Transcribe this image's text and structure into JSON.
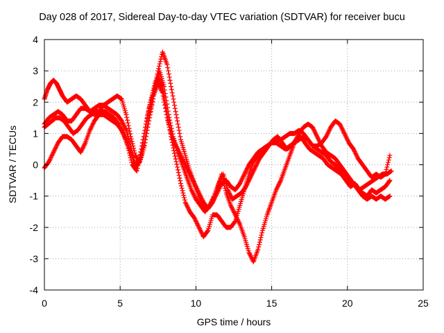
{
  "chart_data": {
    "type": "scatter",
    "title": "Day 028 of 2017, Sidereal Day-to-day VTEC variation (SDTVAR) for receiver bucu",
    "xlabel": "GPS time / hours",
    "ylabel": "SDTVAR / TECUs",
    "xlim": [
      0,
      25
    ],
    "ylim": [
      -4,
      4
    ],
    "xticks": [
      "0",
      "5",
      "10",
      "15",
      "20",
      "25"
    ],
    "yticks": [
      "-4",
      "-3",
      "-2",
      "-1",
      "0",
      "1",
      "2",
      "3",
      "4"
    ],
    "grid": true,
    "marker": "+",
    "color": "#ff0000",
    "series": [
      {
        "x": [
          0.0,
          0.2,
          0.4,
          0.6,
          0.8,
          1.0,
          1.2,
          1.5,
          1.8,
          2.1,
          2.4,
          2.7,
          3.0,
          3.3,
          3.6,
          3.9,
          4.2,
          4.5,
          4.8,
          5.1,
          5.4,
          5.7,
          6.0,
          6.3,
          6.6,
          6.9,
          7.2,
          7.5,
          7.8,
          8.1,
          8.4,
          8.7,
          9.0,
          9.3,
          9.6,
          9.9,
          10.2,
          10.5,
          10.8,
          11.1,
          11.4,
          11.7,
          12.0,
          12.3,
          12.6,
          12.9,
          13.2,
          13.5,
          13.8,
          14.1,
          14.4,
          14.7,
          15.0,
          15.3,
          15.6,
          15.9,
          16.2,
          16.5,
          16.8,
          17.1,
          17.4,
          17.7,
          18.0,
          18.3,
          18.6,
          18.9,
          19.2,
          19.5,
          19.8,
          20.1,
          20.4,
          20.7,
          21.0,
          21.3,
          21.6,
          21.9,
          22.2,
          22.5,
          22.8
        ],
        "y": [
          2.1,
          2.4,
          2.6,
          2.7,
          2.6,
          2.4,
          2.2,
          2.0,
          2.1,
          2.2,
          2.1,
          1.9,
          1.7,
          1.8,
          1.9,
          1.9,
          1.8,
          1.7,
          1.6,
          1.4,
          1.1,
          0.6,
          0.0,
          0.2,
          1.0,
          1.8,
          2.3,
          2.8,
          2.5,
          1.6,
          0.8,
          0.1,
          -0.6,
          -1.2,
          -1.5,
          -1.7,
          -2.0,
          -2.3,
          -2.1,
          -1.6,
          -1.6,
          -1.8,
          -2.0,
          -2.0,
          -1.8,
          -1.3,
          -0.8,
          -0.3,
          0.1,
          0.3,
          0.5,
          0.6,
          0.7,
          0.8,
          0.8,
          0.9,
          1.0,
          1.0,
          1.1,
          1.0,
          0.8,
          0.6,
          0.5,
          0.4,
          0.3,
          0.1,
          0.0,
          -0.2,
          -0.4,
          -0.5,
          -0.6,
          -0.8,
          -0.9,
          -1.0,
          -0.8,
          -0.9,
          -0.8,
          -0.7,
          -0.5
        ]
      },
      {
        "x": [
          0.0,
          0.3,
          0.6,
          0.9,
          1.2,
          1.5,
          1.8,
          2.1,
          2.4,
          2.7,
          3.0,
          3.3,
          3.6,
          3.9,
          4.2,
          4.5,
          4.8,
          5.1,
          5.4,
          5.7,
          6.0,
          6.3,
          6.6,
          6.9,
          7.2,
          7.5,
          7.8,
          8.1,
          8.4,
          8.7,
          9.0,
          9.3,
          9.6,
          9.9,
          10.2,
          10.5,
          10.8,
          11.1,
          11.4,
          11.7,
          12.0,
          12.3,
          12.6,
          12.9,
          13.2,
          13.5,
          13.8,
          14.1,
          14.4,
          14.7,
          15.0,
          15.3,
          15.6,
          15.9,
          16.2,
          16.5,
          16.8,
          17.1,
          17.4,
          17.7,
          18.0,
          18.3,
          18.6,
          18.9,
          19.2,
          19.5,
          19.8,
          20.1,
          20.4,
          20.7,
          21.0,
          21.3,
          21.6,
          21.9,
          22.2,
          22.5,
          22.8
        ],
        "y": [
          1.3,
          1.5,
          1.6,
          1.7,
          1.6,
          1.4,
          1.4,
          1.6,
          1.8,
          1.8,
          1.7,
          1.6,
          1.7,
          1.9,
          2.0,
          2.1,
          2.2,
          2.1,
          1.6,
          0.9,
          0.3,
          0.1,
          0.6,
          1.4,
          2.2,
          3.0,
          3.6,
          3.2,
          2.4,
          1.6,
          0.8,
          0.3,
          -0.2,
          -0.6,
          -1.0,
          -1.3,
          -1.4,
          -1.2,
          -0.8,
          -0.3,
          -0.9,
          -1.3,
          -1.6,
          -1.9,
          -2.3,
          -2.8,
          -3.1,
          -2.7,
          -2.1,
          -1.6,
          -1.2,
          -0.8,
          -0.5,
          -0.1,
          0.3,
          0.7,
          1.0,
          1.2,
          1.3,
          1.2,
          0.9,
          0.6,
          0.4,
          0.3,
          0.2,
          0.0,
          -0.2,
          -0.4,
          -0.6,
          -0.8,
          -1.0,
          -1.1,
          -1.0,
          -1.1,
          -1.0,
          -1.1,
          -1.0
        ]
      },
      {
        "x": [
          0.0,
          0.25,
          0.5,
          0.75,
          1.0,
          1.3,
          1.6,
          1.9,
          2.2,
          2.5,
          2.8,
          3.1,
          3.4,
          3.7,
          4.0,
          4.3,
          4.6,
          4.9,
          5.2,
          5.5,
          5.8,
          6.1,
          6.4,
          6.7,
          7.0,
          7.3,
          7.6,
          7.9,
          8.2,
          8.5,
          8.8,
          9.1,
          9.4,
          9.7,
          10.0,
          10.3,
          10.6,
          10.9,
          11.2,
          11.5,
          11.8,
          12.1,
          12.4,
          12.7,
          13.0,
          13.3,
          13.6,
          13.9,
          14.2,
          14.5,
          14.8,
          15.1,
          15.4,
          15.7,
          16.0,
          16.3,
          16.6,
          16.9,
          17.2,
          17.5,
          17.8,
          18.1,
          18.4,
          18.7,
          19.0,
          19.3,
          19.6,
          19.9,
          20.2,
          20.5,
          20.8,
          21.1,
          21.4,
          21.7,
          22.0,
          22.3,
          22.6,
          22.9
        ],
        "y": [
          1.2,
          1.3,
          1.4,
          1.5,
          1.5,
          1.4,
          1.2,
          1.0,
          1.1,
          1.3,
          1.5,
          1.6,
          1.7,
          1.7,
          1.7,
          1.6,
          1.5,
          1.3,
          1.0,
          0.6,
          0.0,
          -0.2,
          0.5,
          1.3,
          2.0,
          2.6,
          3.0,
          2.5,
          1.6,
          0.9,
          0.4,
          0.0,
          -0.4,
          -0.8,
          -1.1,
          -1.3,
          -1.5,
          -1.3,
          -1.0,
          -0.6,
          -0.3,
          -0.8,
          -1.1,
          -1.0,
          -0.9,
          -0.7,
          -0.4,
          -0.1,
          0.2,
          0.4,
          0.6,
          0.8,
          0.9,
          0.7,
          0.5,
          0.6,
          0.8,
          0.9,
          0.7,
          0.5,
          0.4,
          0.3,
          0.2,
          0.0,
          -0.1,
          -0.2,
          -0.3,
          -0.5,
          -0.7,
          -0.6,
          -0.8,
          -0.7,
          -0.6,
          -0.5,
          -0.4,
          -0.3,
          -0.3,
          -0.2
        ]
      },
      {
        "x": [
          0.0,
          0.3,
          0.6,
          0.9,
          1.2,
          1.5,
          1.8,
          2.1,
          2.4,
          2.7,
          3.0,
          3.3,
          3.6,
          3.9,
          4.2,
          4.5,
          4.8,
          5.1,
          5.4,
          5.7,
          6.0,
          6.3,
          6.6,
          6.9,
          7.2,
          7.5,
          7.8,
          8.1,
          8.4,
          8.7,
          9.0,
          9.3,
          9.6,
          9.9,
          10.2,
          10.5,
          10.8,
          11.1,
          11.4,
          11.7,
          12.0,
          12.3,
          12.6,
          12.9,
          13.2,
          13.5,
          13.8,
          14.1,
          14.4,
          14.7,
          15.0,
          15.3,
          15.6,
          15.9,
          16.2,
          16.5,
          16.8,
          17.1,
          17.4,
          17.7,
          18.0,
          18.3,
          18.6,
          18.9,
          19.2,
          19.5,
          19.8,
          20.1,
          20.4,
          20.7,
          21.0,
          21.3,
          21.6,
          21.9,
          22.2,
          22.5,
          22.8
        ],
        "y": [
          -0.1,
          0.1,
          0.4,
          0.7,
          0.9,
          0.9,
          0.8,
          0.6,
          0.4,
          0.7,
          1.1,
          1.4,
          1.6,
          1.6,
          1.5,
          1.4,
          1.3,
          1.1,
          0.8,
          0.4,
          -0.1,
          0.1,
          0.7,
          1.5,
          2.2,
          2.6,
          2.3,
          1.5,
          0.9,
          0.6,
          0.3,
          0.0,
          -0.3,
          -0.6,
          -0.9,
          -1.2,
          -1.4,
          -1.2,
          -0.9,
          -0.6,
          -0.5,
          -0.7,
          -0.8,
          -0.6,
          -0.3,
          0.0,
          0.2,
          0.4,
          0.5,
          0.6,
          0.7,
          0.7,
          0.6,
          0.5,
          0.6,
          0.7,
          0.8,
          0.9,
          0.8,
          0.6,
          0.6,
          0.7,
          0.9,
          1.2,
          1.4,
          1.3,
          1.0,
          0.7,
          0.5,
          0.2,
          0.0,
          -0.2,
          -0.4,
          -0.3,
          -0.4,
          -0.3,
          0.3
        ]
      }
    ]
  }
}
